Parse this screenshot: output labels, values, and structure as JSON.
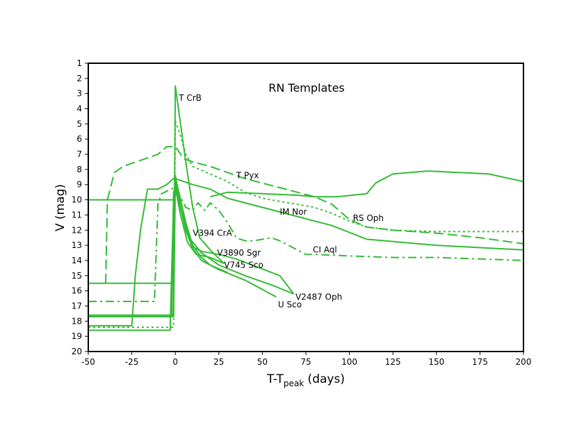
{
  "chart_data": {
    "type": "line",
    "title": "RN Templates",
    "xlabel_main": "T-T",
    "xlabel_sub": "peak",
    "xlabel_tail": " (days)",
    "ylabel": "V (mag)",
    "xlim": [
      -50,
      200
    ],
    "ylim": [
      1,
      20
    ],
    "y_inverted": true,
    "grid": false,
    "line_color": "#33bb33",
    "axis_color": "#000000",
    "x_ticks": [
      -50,
      -25,
      0,
      25,
      50,
      75,
      100,
      125,
      150,
      175,
      200
    ],
    "y_ticks": [
      1,
      2,
      3,
      4,
      5,
      6,
      7,
      8,
      9,
      10,
      11,
      12,
      13,
      14,
      15,
      16,
      17,
      18,
      19,
      20
    ],
    "series": [
      {
        "name": "T CrB",
        "style": "solid",
        "label": {
          "x": 2,
          "y": 3.3
        },
        "points": [
          [
            -50,
            17.6
          ],
          [
            -1,
            17.6
          ],
          [
            0,
            2.5
          ],
          [
            3,
            5
          ],
          [
            6,
            7.5
          ],
          [
            10,
            10.5
          ],
          [
            14,
            12.5
          ],
          [
            20,
            13.3
          ],
          [
            28,
            14.2
          ]
        ]
      },
      {
        "name": "T Pyx",
        "style": "dash",
        "label": {
          "x": 35,
          "y": 8.4
        },
        "points": [
          [
            -40,
            15.5
          ],
          [
            -39,
            10
          ],
          [
            -35,
            8.2
          ],
          [
            -30,
            7.8
          ],
          [
            -20,
            7.4
          ],
          [
            -10,
            7.0
          ],
          [
            -5,
            6.5
          ],
          [
            0,
            6.5
          ],
          [
            5,
            7.3
          ],
          [
            10,
            7.5
          ],
          [
            20,
            7.8
          ],
          [
            30,
            8.2
          ],
          [
            40,
            8.6
          ],
          [
            50,
            8.9
          ],
          [
            60,
            9.2
          ],
          [
            70,
            9.5
          ],
          [
            80,
            9.8
          ],
          [
            90,
            10.3
          ],
          [
            100,
            11.3
          ],
          [
            110,
            11.8
          ],
          [
            125,
            12.0
          ],
          [
            150,
            12.2
          ],
          [
            175,
            12.5
          ],
          [
            200,
            12.9
          ]
        ]
      },
      {
        "name": "RS Oph",
        "style": "dot",
        "label": {
          "x": 102,
          "y": 11.2
        },
        "points": [
          [
            -50,
            18.4
          ],
          [
            -1,
            18.4
          ],
          [
            0,
            4.8
          ],
          [
            3,
            5.8
          ],
          [
            6,
            7.0
          ],
          [
            10,
            7.8
          ],
          [
            20,
            8.3
          ],
          [
            30,
            8.8
          ],
          [
            40,
            9.5
          ],
          [
            50,
            9.9
          ],
          [
            60,
            10.1
          ],
          [
            70,
            10.3
          ],
          [
            80,
            10.5
          ],
          [
            90,
            10.9
          ],
          [
            100,
            11.4
          ],
          [
            110,
            11.8
          ],
          [
            125,
            12.0
          ],
          [
            150,
            12.1
          ],
          [
            175,
            12.1
          ],
          [
            200,
            12.1
          ]
        ]
      },
      {
        "name": "IM Nor",
        "style": "solid",
        "label": {
          "x": 60,
          "y": 10.8
        },
        "points": [
          [
            -50,
            10
          ],
          [
            -1,
            10
          ],
          [
            0,
            8.6
          ],
          [
            5,
            8.8
          ],
          [
            10,
            9.0
          ],
          [
            20,
            9.3
          ],
          [
            30,
            9.9
          ],
          [
            50,
            10.5
          ],
          [
            70,
            11.1
          ],
          [
            90,
            11.7
          ],
          [
            110,
            12.6
          ],
          [
            150,
            13.0
          ],
          [
            200,
            13.3
          ]
        ]
      },
      {
        "name": "CI Aql",
        "style": "dashdot",
        "label": {
          "x": 79,
          "y": 13.3
        },
        "points": [
          [
            -50,
            16.7
          ],
          [
            -12,
            16.7
          ],
          [
            -10,
            10.3
          ],
          [
            -8,
            9.6
          ],
          [
            -6,
            9.5
          ],
          [
            -3,
            9.3
          ],
          [
            0,
            9.2
          ],
          [
            3,
            9.8
          ],
          [
            6,
            10.5
          ],
          [
            10,
            10.7
          ],
          [
            13,
            10.2
          ],
          [
            17,
            10.7
          ],
          [
            20,
            10.2
          ],
          [
            25,
            10.7
          ],
          [
            30,
            11.5
          ],
          [
            35,
            12.5
          ],
          [
            40,
            12.7
          ],
          [
            45,
            12.7
          ],
          [
            55,
            12.5
          ],
          [
            60,
            12.7
          ],
          [
            65,
            13.0
          ],
          [
            70,
            13.3
          ],
          [
            75,
            13.6
          ],
          [
            80,
            13.6
          ],
          [
            100,
            13.7
          ],
          [
            125,
            13.8
          ],
          [
            150,
            13.8
          ],
          [
            175,
            13.9
          ],
          [
            200,
            14.0
          ]
        ]
      },
      {
        "name": "V394 CrA",
        "style": "solid",
        "label": {
          "x": 10,
          "y": 12.2
        },
        "points": [
          [
            -50,
            18.6
          ],
          [
            -3,
            18.6
          ],
          [
            -1,
            10
          ],
          [
            0,
            8.6
          ],
          [
            3,
            10
          ],
          [
            6,
            11.5
          ],
          [
            10,
            13
          ],
          [
            15,
            13.8
          ],
          [
            20,
            14.3
          ],
          [
            30,
            14.8
          ]
        ]
      },
      {
        "name": "V3890 Sgr",
        "style": "solid",
        "label": {
          "x": 24,
          "y": 13.5
        },
        "points": [
          [
            -50,
            15.5
          ],
          [
            -1,
            15.5
          ],
          [
            0,
            8.4
          ],
          [
            3,
            10.5
          ],
          [
            6,
            11.8
          ],
          [
            10,
            13.1
          ],
          [
            15,
            13.4
          ],
          [
            25,
            13.6
          ],
          [
            35,
            13.9
          ],
          [
            60,
            15.0
          ],
          [
            68,
            16.2
          ]
        ]
      },
      {
        "name": "V745 Sco",
        "style": "solid",
        "label": {
          "x": 28,
          "y": 14.3
        },
        "points": [
          [
            -50,
            17.7
          ],
          [
            -2,
            17.7
          ],
          [
            -1,
            9.5
          ],
          [
            0,
            9.2
          ],
          [
            3,
            11
          ],
          [
            7,
            12.8
          ],
          [
            12,
            13.6
          ],
          [
            20,
            13.8
          ],
          [
            28,
            14.2
          ]
        ]
      },
      {
        "name": "V2487 Oph",
        "style": "solid",
        "label": {
          "x": 69,
          "y": 16.4
        },
        "points": [
          [
            -50,
            18.3
          ],
          [
            -25,
            18.3
          ],
          [
            -23,
            15
          ],
          [
            -20,
            12
          ],
          [
            -16,
            9.3
          ],
          [
            -10,
            9.3
          ],
          [
            -5,
            9.0
          ],
          [
            0,
            8.5
          ],
          [
            4,
            10.5
          ],
          [
            8,
            12.5
          ],
          [
            15,
            13.5
          ],
          [
            25,
            14.3
          ],
          [
            40,
            15.0
          ],
          [
            55,
            15.6
          ],
          [
            68,
            16.2
          ]
        ]
      },
      {
        "name": "U Sco",
        "style": "solid",
        "label": {
          "x": 59,
          "y": 16.9
        },
        "points": [
          [
            -50,
            17.7
          ],
          [
            -1,
            17.7
          ],
          [
            0,
            8.9
          ],
          [
            3,
            10.5
          ],
          [
            6,
            12
          ],
          [
            10,
            13.2
          ],
          [
            15,
            14
          ],
          [
            25,
            14.6
          ],
          [
            40,
            15.3
          ],
          [
            58,
            16.4
          ]
        ]
      },
      {
        "name": "",
        "style": "solid",
        "label": null,
        "points": [
          [
            20,
            9.8
          ],
          [
            30,
            9.5
          ],
          [
            50,
            9.6
          ],
          [
            70,
            9.7
          ],
          [
            80,
            9.8
          ],
          [
            93,
            9.8
          ],
          [
            110,
            9.6
          ],
          [
            115,
            8.9
          ],
          [
            125,
            8.3
          ],
          [
            145,
            8.1
          ],
          [
            180,
            8.3
          ],
          [
            200,
            8.8
          ]
        ]
      }
    ]
  }
}
